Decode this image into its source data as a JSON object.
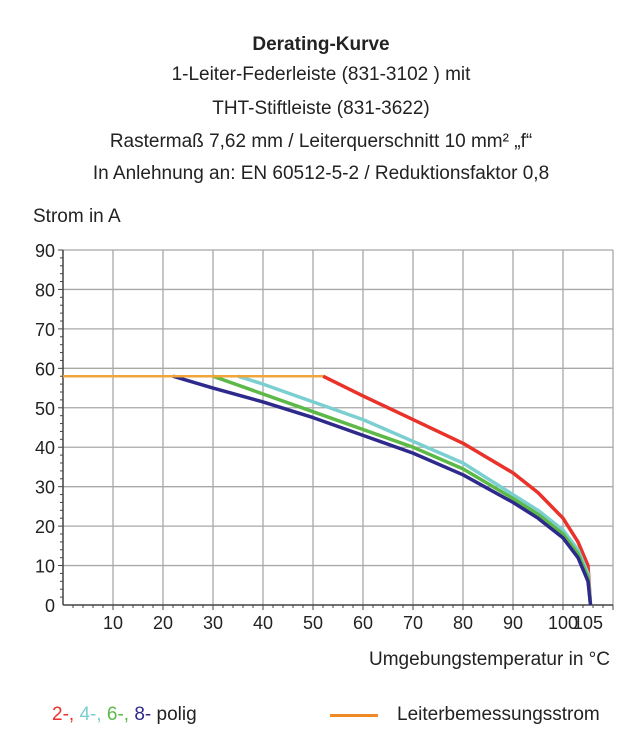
{
  "chart_data": {
    "type": "line",
    "title": "Derating-Kurve",
    "subtitle_lines": [
      "1-Leiter-Federleiste (831-3102 ) mit",
      "THT-Stiftleiste (831-3622)",
      "Rastermaß 7,62 mm / Leiterquerschnitt 10 mm² „f“",
      "In Anlehnung an: EN 60512-5-2 / Reduktionsfaktor 0,8"
    ],
    "ylabel": "Strom in A",
    "xlabel": "Umgebungstemperatur in °C",
    "xlim": [
      0,
      110
    ],
    "ylim": [
      0,
      90
    ],
    "xticks": [
      "10",
      "20",
      "30",
      "40",
      "50",
      "60",
      "70",
      "80",
      "90",
      "100",
      "105"
    ],
    "xtick_values": [
      10,
      20,
      30,
      40,
      50,
      60,
      70,
      80,
      90,
      100,
      105
    ],
    "yticks": [
      "0",
      "10",
      "20",
      "30",
      "40",
      "50",
      "60",
      "70",
      "80",
      "90"
    ],
    "grid": true,
    "series": [
      {
        "name": "Leiterbemessungsstrom",
        "color": "#f0a53a",
        "points": [
          [
            0,
            58
          ],
          [
            52,
            58
          ]
        ]
      },
      {
        "name": "8-polig",
        "color": "#2e2a8c",
        "points": [
          [
            22,
            58
          ],
          [
            30,
            55
          ],
          [
            40,
            51.5
          ],
          [
            50,
            47.5
          ],
          [
            60,
            43
          ],
          [
            70,
            38.5
          ],
          [
            80,
            33
          ],
          [
            90,
            26
          ],
          [
            95,
            22
          ],
          [
            100,
            17
          ],
          [
            103,
            12
          ],
          [
            105,
            6
          ],
          [
            105.5,
            0
          ]
        ]
      },
      {
        "name": "6-polig",
        "color": "#5cb947",
        "points": [
          [
            30,
            58
          ],
          [
            40,
            53.5
          ],
          [
            50,
            49
          ],
          [
            60,
            44.5
          ],
          [
            70,
            40
          ],
          [
            80,
            34.5
          ],
          [
            90,
            27
          ],
          [
            95,
            23
          ],
          [
            100,
            18
          ],
          [
            103,
            13
          ],
          [
            105,
            7
          ],
          [
            105.5,
            0
          ]
        ]
      },
      {
        "name": "4-polig",
        "color": "#7ccfd0",
        "points": [
          [
            35,
            58
          ],
          [
            40,
            56
          ],
          [
            50,
            51.5
          ],
          [
            60,
            47
          ],
          [
            70,
            41.5
          ],
          [
            80,
            36
          ],
          [
            90,
            28
          ],
          [
            95,
            24
          ],
          [
            100,
            19
          ],
          [
            103,
            14
          ],
          [
            105,
            8
          ],
          [
            105.5,
            0
          ]
        ]
      },
      {
        "name": "2-polig",
        "color": "#e8322a",
        "points": [
          [
            52,
            58
          ],
          [
            60,
            53
          ],
          [
            70,
            47
          ],
          [
            80,
            41
          ],
          [
            90,
            33.5
          ],
          [
            95,
            28.5
          ],
          [
            100,
            22
          ],
          [
            103,
            16
          ],
          [
            105,
            10
          ],
          [
            105.5,
            0
          ]
        ]
      }
    ],
    "legend": {
      "poles": [
        {
          "text": "2-,",
          "color": "#e8322a"
        },
        {
          "text": "4-,",
          "color": "#7ccfd0"
        },
        {
          "text": "6-,",
          "color": "#5cb947"
        },
        {
          "text": "8-",
          "color": "#2e2a8c"
        }
      ],
      "poles_suffix": " polig",
      "line_label": "Leiterbemessungsstrom",
      "line_color": "#f08a24",
      "placement": "bottom"
    }
  }
}
